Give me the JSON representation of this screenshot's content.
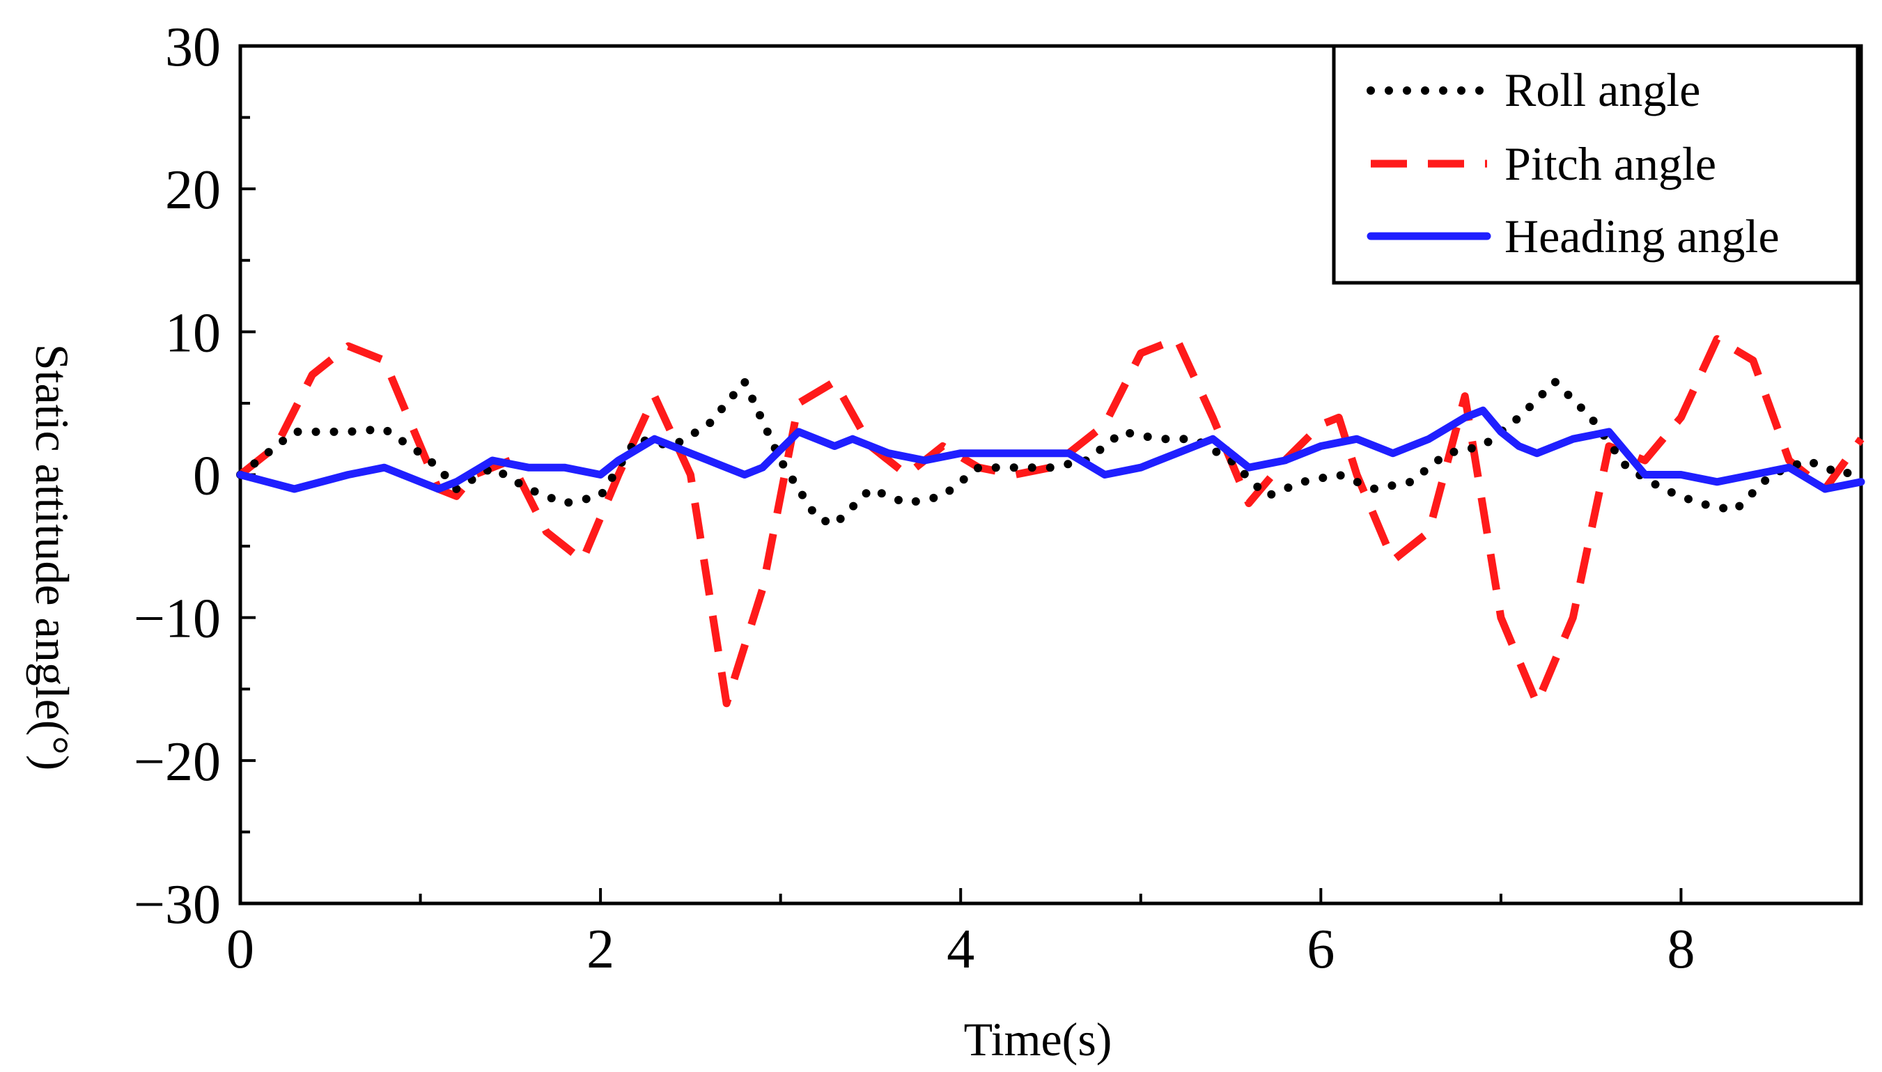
{
  "chart_data": {
    "type": "line",
    "title": "",
    "xlabel": "Time(s)",
    "ylabel": "Static attitude angle(°)",
    "xlim": [
      0,
      9
    ],
    "ylim": [
      -30,
      30
    ],
    "x_ticks": [
      0,
      2,
      4,
      6,
      8
    ],
    "x_tick_labels": [
      "0",
      "2",
      "4",
      "6",
      "8"
    ],
    "y_ticks": [
      30,
      20,
      10,
      0,
      -10,
      -20,
      -30
    ],
    "y_tick_labels": [
      "30",
      "20",
      "10",
      "0",
      "−10",
      "−20",
      "−30"
    ],
    "grid": false,
    "legend_position": "top-right",
    "series": [
      {
        "name": "Roll angle",
        "color": "#000000",
        "style": "dotted",
        "x": [
          0,
          0.3,
          0.6,
          0.8,
          1.0,
          1.1,
          1.2,
          1.4,
          1.6,
          1.8,
          2.0,
          2.2,
          2.4,
          2.6,
          2.8,
          3.0,
          3.2,
          3.3,
          3.5,
          3.7,
          3.9,
          4.1,
          4.3,
          4.5,
          4.7,
          4.9,
          5.1,
          5.3,
          5.5,
          5.7,
          5.9,
          6.1,
          6.3,
          6.5,
          6.7,
          6.9,
          7.1,
          7.3,
          7.5,
          7.7,
          7.9,
          8.1,
          8.3,
          8.5,
          8.7,
          8.9,
          9.0
        ],
        "values": [
          0,
          3,
          3,
          3.2,
          1.5,
          0.5,
          -1,
          0.5,
          -1,
          -2,
          -1.5,
          2.5,
          2,
          3.5,
          6.5,
          1,
          -3,
          -3.5,
          -1,
          -2,
          -1.5,
          0.5,
          0.5,
          0.5,
          1,
          3,
          2.5,
          2.5,
          1,
          -1.5,
          -0.5,
          0,
          -1,
          -0.5,
          1.5,
          2,
          4,
          6.5,
          4,
          0.5,
          -1,
          -2,
          -2.5,
          0,
          1,
          0,
          0.5
        ]
      },
      {
        "name": "Pitch angle",
        "color": "#ff1a1a",
        "style": "dashed",
        "x": [
          0,
          0.2,
          0.4,
          0.6,
          0.8,
          1.0,
          1.1,
          1.2,
          1.3,
          1.5,
          1.7,
          1.9,
          2.1,
          2.3,
          2.5,
          2.7,
          2.9,
          3.1,
          3.3,
          3.5,
          3.7,
          3.9,
          4.1,
          4.3,
          4.5,
          4.8,
          5.0,
          5.2,
          5.4,
          5.6,
          5.8,
          6.0,
          6.1,
          6.2,
          6.4,
          6.6,
          6.8,
          7.0,
          7.2,
          7.4,
          7.6,
          7.8,
          8.0,
          8.2,
          8.4,
          8.6,
          8.8,
          9.0
        ],
        "values": [
          0,
          2,
          7,
          9,
          8,
          2,
          -1,
          -1.5,
          0,
          1,
          -4,
          -6,
          0,
          5.5,
          0,
          -16,
          -8,
          5,
          6.5,
          2,
          0,
          2,
          0.5,
          0,
          0.5,
          3.5,
          8.5,
          9.5,
          4,
          -2,
          1,
          3.5,
          4,
          0,
          -6,
          -4,
          5.5,
          -10,
          -16,
          -10,
          2,
          1,
          4,
          9.5,
          8,
          1,
          -1,
          2.5
        ]
      },
      {
        "name": "Heading angle",
        "color": "#1f1fff",
        "style": "solid",
        "x": [
          0,
          0.3,
          0.6,
          0.8,
          1.0,
          1.1,
          1.2,
          1.4,
          1.6,
          1.8,
          2.0,
          2.1,
          2.3,
          2.5,
          2.7,
          2.8,
          2.9,
          3.1,
          3.3,
          3.4,
          3.6,
          3.8,
          4.0,
          4.2,
          4.4,
          4.6,
          4.8,
          5.0,
          5.2,
          5.4,
          5.6,
          5.8,
          6.0,
          6.2,
          6.4,
          6.6,
          6.8,
          6.9,
          7.0,
          7.1,
          7.2,
          7.4,
          7.6,
          7.8,
          8.0,
          8.2,
          8.4,
          8.6,
          8.8,
          9.0
        ],
        "values": [
          0,
          -1,
          0,
          0.5,
          -0.5,
          -1,
          -0.5,
          1,
          0.5,
          0.5,
          0,
          1,
          2.5,
          1.5,
          0.5,
          0,
          0.5,
          3,
          2,
          2.5,
          1.5,
          1,
          1.5,
          1.5,
          1.5,
          1.5,
          0,
          0.5,
          1.5,
          2.5,
          0.5,
          1,
          2,
          2.5,
          1.5,
          2.5,
          4,
          4.5,
          3,
          2,
          1.5,
          2.5,
          3,
          0,
          0,
          -0.5,
          0,
          0.5,
          -1,
          -0.5
        ]
      }
    ]
  }
}
